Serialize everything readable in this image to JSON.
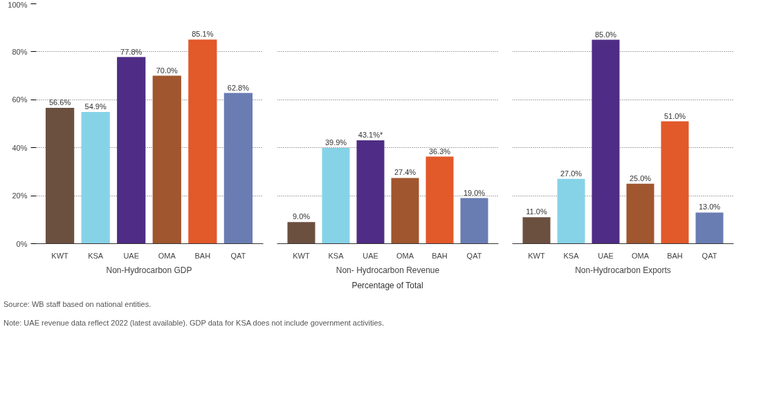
{
  "chart_data": [
    {
      "type": "bar",
      "xlabel": "Non-Hydrocarbon GDP",
      "categories": [
        "KWT",
        "KSA",
        "UAE",
        "OMA",
        "BAH",
        "QAT"
      ],
      "values": [
        56.6,
        54.9,
        77.8,
        70.0,
        85.1,
        62.8
      ],
      "colors": [
        "#6b5040",
        "#86d3e8",
        "#4f2d86",
        "#a0562e",
        "#e2592a",
        "#6a7db3"
      ],
      "value_labels": [
        "56.6%",
        "54.9%",
        "77.8%",
        "70.0%",
        "85.1%",
        "62.8%"
      ],
      "ylim": [
        0,
        100
      ],
      "yticks": [
        {
          "value": 0,
          "label": "0%"
        },
        {
          "value": 20,
          "label": "20%"
        },
        {
          "value": 40,
          "label": "40%"
        },
        {
          "value": 60,
          "label": "60%"
        },
        {
          "value": 80,
          "label": "80%"
        },
        {
          "value": 100,
          "label": "100%"
        }
      ],
      "grid": "y"
    },
    {
      "type": "bar",
      "xlabel": "Non- Hydrocarbon Revenue",
      "categories": [
        "KWT",
        "KSA",
        "UAE",
        "OMA",
        "BAH",
        "QAT"
      ],
      "values": [
        9.0,
        39.9,
        43.1,
        27.4,
        36.3,
        19.0
      ],
      "colors": [
        "#6b5040",
        "#86d3e8",
        "#4f2d86",
        "#a0562e",
        "#e2592a",
        "#6a7db3"
      ],
      "value_labels": [
        "9.0%",
        "39.9%",
        "43.1%*",
        "27.4%",
        "36.3%",
        "19.0%"
      ],
      "ylim": [
        0,
        100
      ],
      "yticks": [
        0,
        20,
        40,
        60,
        80,
        100
      ],
      "grid": "y",
      "tick_labels": "x"
    },
    {
      "type": "bar",
      "xlabel": "Non-Hydrocarbon Exports",
      "categories": [
        "KWT",
        "KSA",
        "UAE",
        "OMA",
        "BAH",
        "QAT"
      ],
      "values": [
        11.0,
        27.0,
        85.0,
        25.0,
        51.0,
        13.0
      ],
      "colors": [
        "#6b5040",
        "#86d3e8",
        "#4f2d86",
        "#a0562e",
        "#e2592a",
        "#6a7db3"
      ],
      "value_labels": [
        "11.0%",
        "27.0%",
        "85.0%",
        "25.0%",
        "51.0%",
        "13.0%"
      ],
      "ylim": [
        0,
        100
      ],
      "yticks": [
        0,
        20,
        40,
        60,
        80,
        100
      ],
      "grid": "y",
      "tick_labels": "x",
      "annotations": [
        "Percentage of Total",
        "Source: WB staff based on national entities.",
        "Note: UAE revenue data reflect 2022 (latest available). GDP data for KSA does not include government activities."
      ]
    }
  ]
}
